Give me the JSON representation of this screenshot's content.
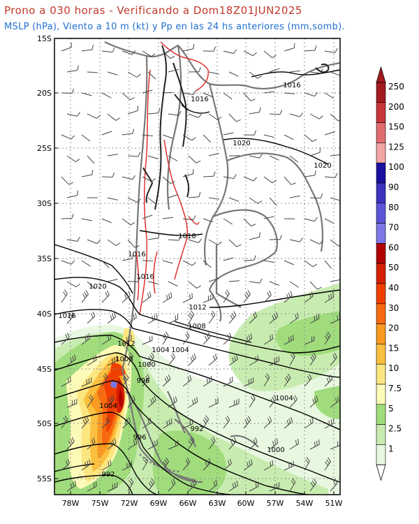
{
  "title": "Prono a 030 horas - Verificando a Dom18Z01JUN2025",
  "subtitle": "MSLP (hPa), Viento a 10 m (kt) y Pp en las 24 hs anteriores (mm,somb).",
  "map": {
    "lat_labels": [
      "15S",
      "20S",
      "25S",
      "30S",
      "35S",
      "40S",
      "45S",
      "50S",
      "55S"
    ],
    "lon_labels": [
      "78W",
      "75W",
      "72W",
      "69W",
      "66W",
      "63W",
      "60W",
      "57W",
      "54W",
      "51W"
    ],
    "lat_range": [
      -56,
      -15
    ],
    "lon_range": [
      -80,
      -50.5
    ],
    "isobars": [
      {
        "value": "1016"
      },
      {
        "value": "1020"
      },
      {
        "value": "1020"
      },
      {
        "value": "1016"
      },
      {
        "value": "1016"
      },
      {
        "value": "1018"
      },
      {
        "value": "1016"
      },
      {
        "value": "1020"
      },
      {
        "value": "1016"
      },
      {
        "value": "1012"
      },
      {
        "value": "1012"
      },
      {
        "value": "1008"
      },
      {
        "value": "1008"
      },
      {
        "value": "1004"
      },
      {
        "value": "1004"
      },
      {
        "value": "1000"
      },
      {
        "value": "996"
      },
      {
        "value": "1004"
      },
      {
        "value": "1004"
      },
      {
        "value": "992"
      },
      {
        "value": "996"
      },
      {
        "value": "1000"
      },
      {
        "value": "992"
      }
    ]
  },
  "colorbar": {
    "labels": [
      "250",
      "200",
      "150",
      "125",
      "100",
      "90",
      "80",
      "70",
      "60",
      "50",
      "40",
      "30",
      "20",
      "15",
      "10",
      "7.5",
      "5",
      "2.5",
      "1"
    ],
    "colors": [
      "#a31a1f",
      "#c8363a",
      "#e06c70",
      "#f2a5a5",
      "#1a0fa0",
      "#3a33c0",
      "#5a55d8",
      "#7a78e8",
      "#b00000",
      "#d42000",
      "#f04000",
      "#f86a10",
      "#fa9a20",
      "#fbc040",
      "#fce680",
      "#fdfab8",
      "#a0dc7c",
      "#c8ecb0",
      "#e8f8e0"
    ],
    "top_arrow_color": "#a31a1f",
    "bottom_arrow_color": "#ffffff"
  },
  "colors": {
    "title": "#c0392b",
    "subtitle": "#1f6fd1",
    "isobar": "#000000",
    "border": "#777777",
    "topography": "#e03030"
  }
}
